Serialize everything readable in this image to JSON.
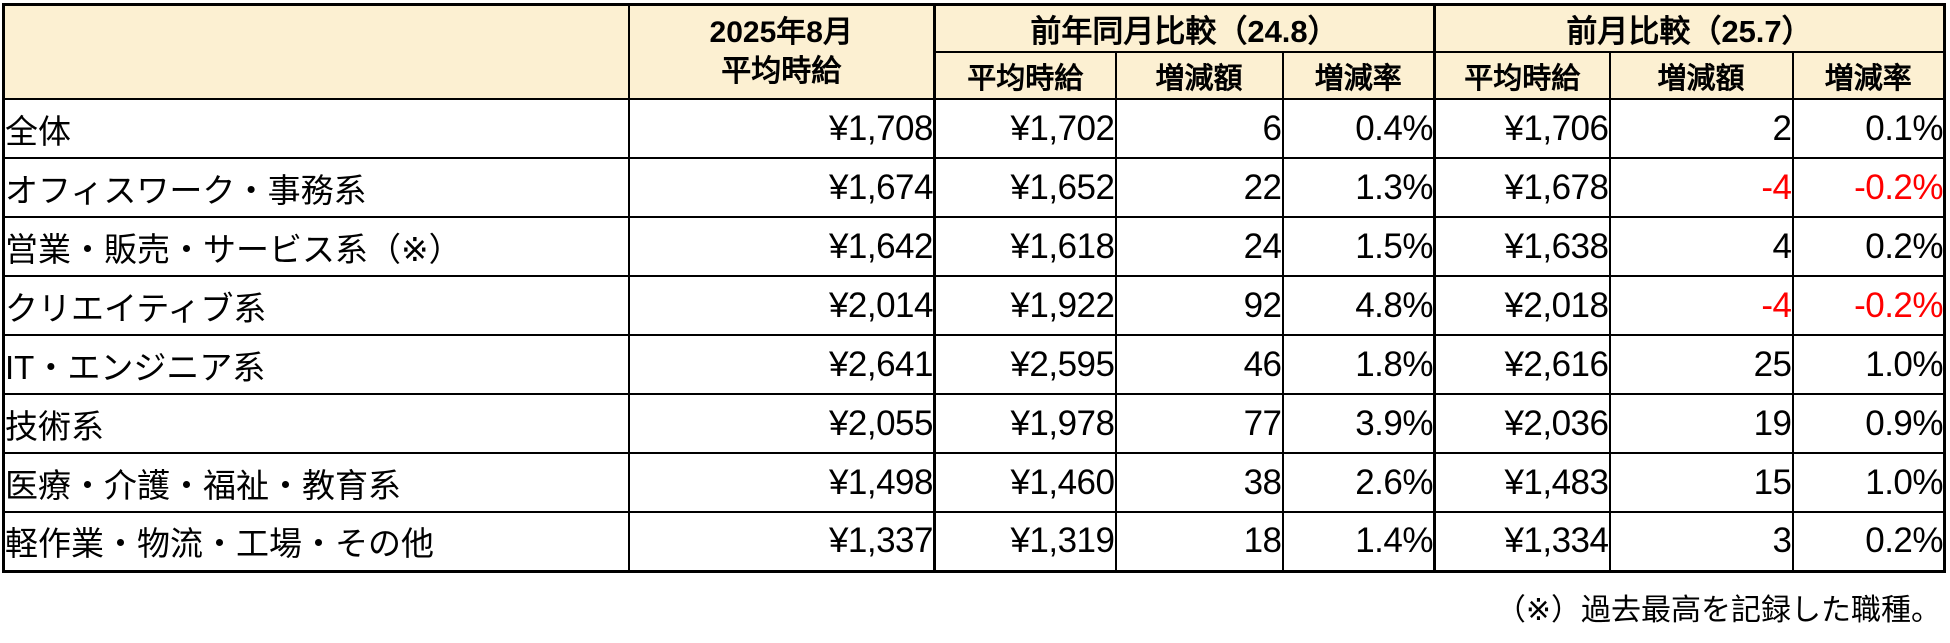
{
  "colors": {
    "header_bg": "#FCF0D2",
    "negative_text": "#FF0000",
    "border": "#000000"
  },
  "table": {
    "header": {
      "corner": "",
      "current_month": "2025年8月",
      "current_label": "平均時給",
      "group_yoy": "前年同月比較（24.8）",
      "group_mom": "前月比較（25.7）",
      "sub_wage": "平均時給",
      "sub_diff": "増減額",
      "sub_rate": "増減率"
    },
    "rows": [
      {
        "label": "全体",
        "current": "¥1,708",
        "yoy_wage": "¥1,702",
        "yoy_diff": "6",
        "yoy_rate": "0.4%",
        "mom_wage": "¥1,706",
        "mom_diff": "2",
        "mom_rate": "0.1%"
      },
      {
        "label": "オフィスワーク・事務系",
        "current": "¥1,674",
        "yoy_wage": "¥1,652",
        "yoy_diff": "22",
        "yoy_rate": "1.3%",
        "mom_wage": "¥1,678",
        "mom_diff": "-4",
        "mom_rate": "-0.2%"
      },
      {
        "label": "営業・販売・サービス系（※）",
        "current": "¥1,642",
        "yoy_wage": "¥1,618",
        "yoy_diff": "24",
        "yoy_rate": "1.5%",
        "mom_wage": "¥1,638",
        "mom_diff": "4",
        "mom_rate": "0.2%"
      },
      {
        "label": "クリエイティブ系",
        "current": "¥2,014",
        "yoy_wage": "¥1,922",
        "yoy_diff": "92",
        "yoy_rate": "4.8%",
        "mom_wage": "¥2,018",
        "mom_diff": "-4",
        "mom_rate": "-0.2%"
      },
      {
        "label": "IT・エンジニア系",
        "current": "¥2,641",
        "yoy_wage": "¥2,595",
        "yoy_diff": "46",
        "yoy_rate": "1.8%",
        "mom_wage": "¥2,616",
        "mom_diff": "25",
        "mom_rate": "1.0%"
      },
      {
        "label": "技術系",
        "current": "¥2,055",
        "yoy_wage": "¥1,978",
        "yoy_diff": "77",
        "yoy_rate": "3.9%",
        "mom_wage": "¥2,036",
        "mom_diff": "19",
        "mom_rate": "0.9%"
      },
      {
        "label": "医療・介護・福祉・教育系",
        "current": "¥1,498",
        "yoy_wage": "¥1,460",
        "yoy_diff": "38",
        "yoy_rate": "2.6%",
        "mom_wage": "¥1,483",
        "mom_diff": "15",
        "mom_rate": "1.0%"
      },
      {
        "label": "軽作業・物流・工場・その他",
        "current": "¥1,337",
        "yoy_wage": "¥1,319",
        "yoy_diff": "18",
        "yoy_rate": "1.4%",
        "mom_wage": "¥1,334",
        "mom_diff": "3",
        "mom_rate": "0.2%"
      }
    ]
  },
  "footnote": "（※）過去最高を記録した職種。"
}
